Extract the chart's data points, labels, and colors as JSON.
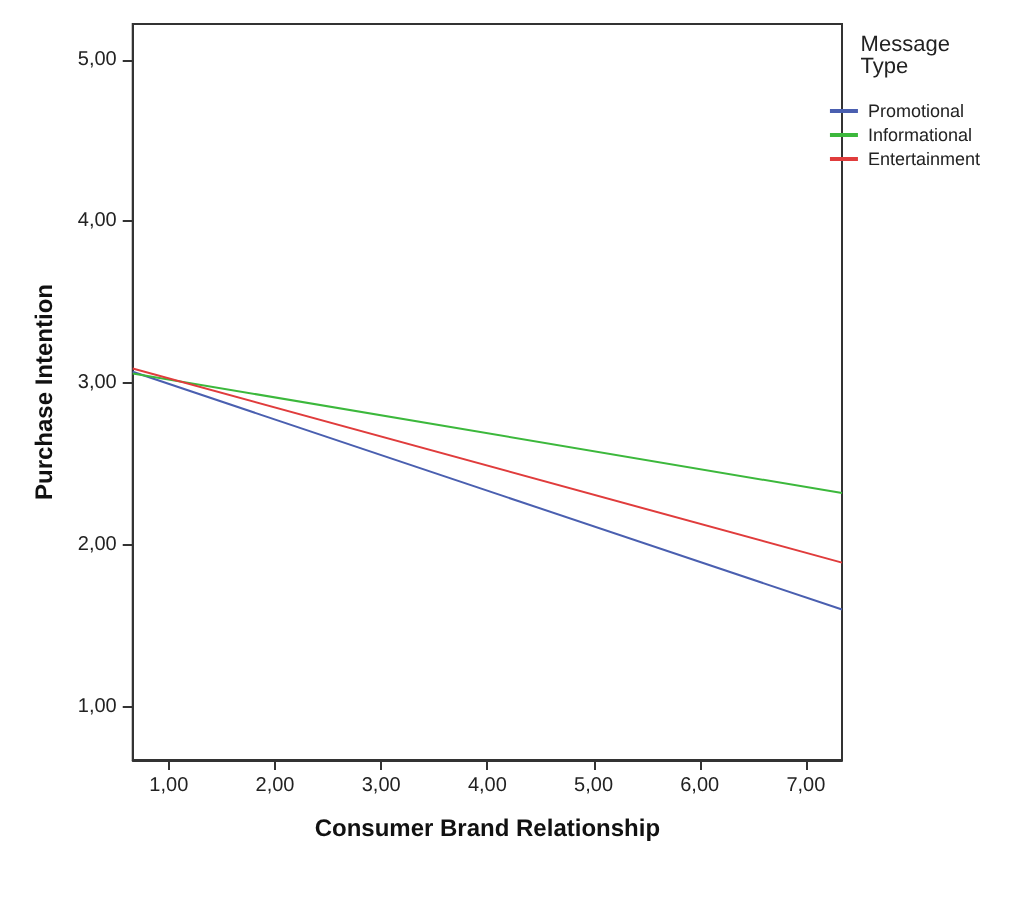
{
  "chart_data": {
    "type": "line",
    "xlabel": "Consumer Brand Relationship",
    "ylabel": "Purchase Intention",
    "legend_title": "Message Type",
    "xlim": [
      0.66,
      7.34
    ],
    "ylim": [
      0.67,
      5.22
    ],
    "xticks": [
      {
        "value": 1,
        "label": "1,00"
      },
      {
        "value": 2,
        "label": "2,00"
      },
      {
        "value": 3,
        "label": "3,00"
      },
      {
        "value": 4,
        "label": "4,00"
      },
      {
        "value": 5,
        "label": "5,00"
      },
      {
        "value": 6,
        "label": "6,00"
      },
      {
        "value": 7,
        "label": "7,00"
      }
    ],
    "yticks": [
      {
        "value": 1,
        "label": "1,00"
      },
      {
        "value": 2,
        "label": "2,00"
      },
      {
        "value": 3,
        "label": "3,00"
      },
      {
        "value": 4,
        "label": "4,00"
      },
      {
        "value": 5,
        "label": "5,00"
      }
    ],
    "grid": false,
    "legend": "top right",
    "marker": "none",
    "line_style": "solid",
    "x": [
      0.66,
      7.34
    ],
    "series": [
      {
        "name": "Promotional",
        "color": "#4a5fb0",
        "values": [
          3.07,
          1.6
        ]
      },
      {
        "name": "Informational",
        "color": "#3cb83c",
        "values": [
          3.06,
          2.32
        ]
      },
      {
        "name": "Entertainment",
        "color": "#e03c3c",
        "values": [
          3.09,
          1.89
        ]
      }
    ]
  }
}
